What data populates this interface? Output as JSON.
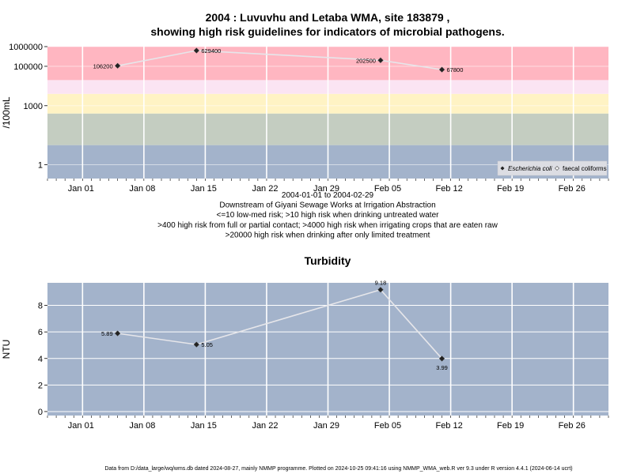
{
  "chart_data": [
    {
      "type": "line",
      "title": "2004 : Luvuvhu and Letaba WMA, site 183879 ,",
      "title2": "showing high risk guidelines for indicators of microbial pathogens.",
      "ylabel": "/100mL",
      "yscale": "log",
      "ylim": [
        0.2,
        1000000
      ],
      "yticks": [
        {
          "v": 1000000,
          "label": "1000000"
        },
        {
          "v": 100000,
          "label": "100000"
        },
        {
          "v": 1000,
          "label": "1000"
        },
        {
          "v": 1,
          "label": "1"
        }
      ],
      "x_range": [
        "2003-12-28",
        "2004-03-01"
      ],
      "x_ticks": [
        {
          "date": "2004-01-01",
          "label": "Jan 01"
        },
        {
          "date": "2004-01-08",
          "label": "Jan 08"
        },
        {
          "date": "2004-01-15",
          "label": "Jan 15"
        },
        {
          "date": "2004-01-22",
          "label": "Jan 22"
        },
        {
          "date": "2004-01-29",
          "label": "Jan 29"
        },
        {
          "date": "2004-02-05",
          "label": "Feb 05"
        },
        {
          "date": "2004-02-12",
          "label": "Feb 12"
        },
        {
          "date": "2004-02-19",
          "label": "Feb 19"
        },
        {
          "date": "2004-02-26",
          "label": "Feb 26"
        }
      ],
      "bands": [
        {
          "from": 0.2,
          "to": 10,
          "color": "#a3b3cb"
        },
        {
          "from": 10,
          "to": 400,
          "color": "#c4cdc1"
        },
        {
          "from": 400,
          "to": 4000,
          "color": "#fff3c4"
        },
        {
          "from": 4000,
          "to": 20000,
          "color": "#fbe4f3"
        },
        {
          "from": 20000,
          "to": 1000000,
          "color": "#ffb6c1"
        }
      ],
      "series": [
        {
          "name": "Escherichia coli",
          "points": [
            {
              "x": "2004-01-05",
              "y": 106200,
              "label": "106200",
              "pos": "left"
            },
            {
              "x": "2004-01-14",
              "y": 629400,
              "label": "629400",
              "pos": "right"
            },
            {
              "x": "2004-02-04",
              "y": 202500,
              "label": "202500",
              "pos": "left"
            },
            {
              "x": "2004-02-11",
              "y": 67800,
              "label": "67800",
              "pos": "right"
            }
          ]
        }
      ],
      "legend": {
        "placement": "bottom-right",
        "items": [
          {
            "label": "Escherichia coli",
            "marker": "filled-diamond"
          },
          {
            "label": "faecal coliforms",
            "marker": "open-diamond"
          }
        ]
      },
      "subtitle_lines": [
        "2004-01-01 to 2004-02-29",
        "Downstream of Giyani Sewage Works at Irrigation Abstraction",
        "<=10 low-med risk; >10 high risk when drinking untreated water",
        ">400 high risk from full or partial contact; >4000 high risk when irrigating crops that are eaten raw",
        ">20000 high risk when drinking after only limited treatment"
      ]
    },
    {
      "type": "line",
      "title": "Turbidity",
      "ylabel": "NTU",
      "ylim": [
        -0.3,
        9.7
      ],
      "yticks": [
        {
          "v": 0,
          "label": "0"
        },
        {
          "v": 2,
          "label": "2"
        },
        {
          "v": 4,
          "label": "4"
        },
        {
          "v": 6,
          "label": "6"
        },
        {
          "v": 8,
          "label": "8"
        }
      ],
      "x_range": [
        "2003-12-28",
        "2004-03-01"
      ],
      "x_ticks": [
        {
          "date": "2004-01-01",
          "label": "Jan 01"
        },
        {
          "date": "2004-01-08",
          "label": "Jan 08"
        },
        {
          "date": "2004-01-15",
          "label": "Jan 15"
        },
        {
          "date": "2004-01-22",
          "label": "Jan 22"
        },
        {
          "date": "2004-01-29",
          "label": "Jan 29"
        },
        {
          "date": "2004-02-05",
          "label": "Feb 05"
        },
        {
          "date": "2004-02-12",
          "label": "Feb 12"
        },
        {
          "date": "2004-02-19",
          "label": "Feb 19"
        },
        {
          "date": "2004-02-26",
          "label": "Feb 26"
        }
      ],
      "background": "#a3b3cb",
      "series": [
        {
          "points": [
            {
              "x": "2004-01-05",
              "y": 5.89,
              "label": "5.89",
              "pos": "left"
            },
            {
              "x": "2004-01-14",
              "y": 5.05,
              "label": "5.05",
              "pos": "right"
            },
            {
              "x": "2004-02-04",
              "y": 9.18,
              "label": "9.18",
              "pos": "above"
            },
            {
              "x": "2004-02-11",
              "y": 3.99,
              "label": "3.99",
              "pos": "below"
            }
          ]
        }
      ]
    }
  ],
  "footer": "Data from D:/data_large/wq/wms.db dated 2024-08-27, mainly NMMP programme. Plotted on 2024-10-25 09:41:16 using NMMP_WMA_web.R ver 9.3 under R version 4.4.1 (2024-06-14 ucrt)"
}
